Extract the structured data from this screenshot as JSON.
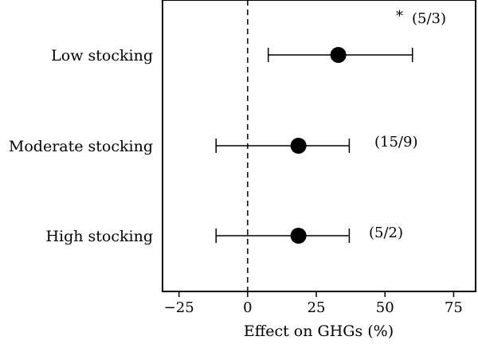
{
  "chart_data": {
    "type": "scatter",
    "title": "",
    "xlabel": "Effect on GHGs (%)",
    "ylabel": "",
    "xlim": [
      -31,
      83
    ],
    "x_ticks": [
      -25,
      0,
      25,
      50,
      75
    ],
    "x_tick_labels": [
      "−25",
      "0",
      "25",
      "50",
      "75"
    ],
    "reference_line_x": 0,
    "grid": false,
    "legend": "none",
    "categories": [
      "Low stocking",
      "Moderate stocking",
      "High stocking"
    ],
    "estimates": [
      33,
      18.5,
      18.5
    ],
    "ci_low": [
      7.5,
      -11.5,
      -11.5
    ],
    "ci_high": [
      60,
      37,
      37
    ],
    "annotations": [
      "(5/3)",
      "(15/9)",
      "(5/2)"
    ],
    "significance_markers": [
      "*",
      "",
      ""
    ],
    "colors": {
      "marker": "#000000",
      "axis": "#000000",
      "background": "#ffffff"
    }
  }
}
